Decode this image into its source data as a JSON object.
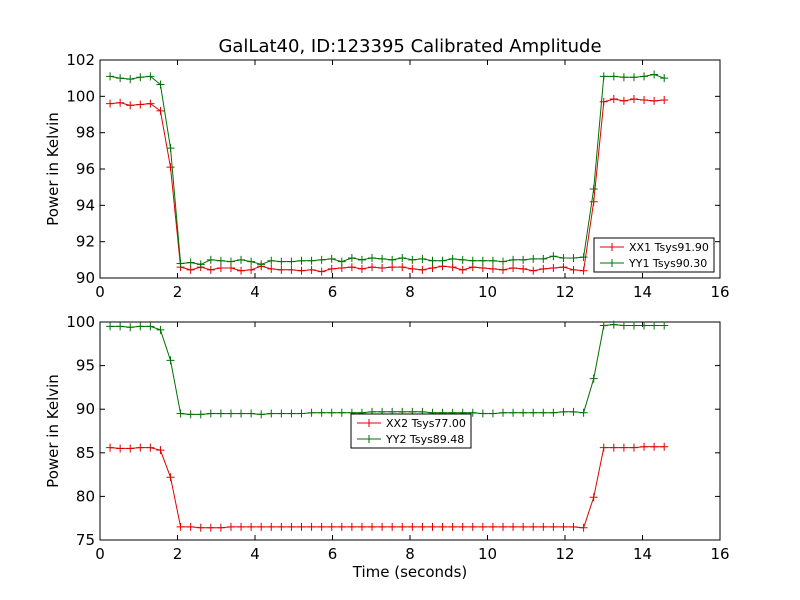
{
  "title": "GalLat40, ID:123395 Calibrated Amplitude",
  "xlabel": "Time (seconds)",
  "ylabel": "Power in Kelvin",
  "colors": {
    "xx": "#e00000",
    "yy": "#007000"
  },
  "chart_data": [
    {
      "type": "line",
      "title": "GalLat40, ID:123395 Calibrated Amplitude",
      "xlabel": "",
      "ylabel": "Power in Kelvin",
      "xlim": [
        0,
        16
      ],
      "ylim": [
        90,
        102
      ],
      "xticks": [
        0,
        2,
        4,
        6,
        8,
        10,
        12,
        14,
        16
      ],
      "yticks": [
        90,
        92,
        94,
        96,
        98,
        100,
        102
      ],
      "grid": false,
      "legend_position": "bottom-right",
      "x": [
        0.26,
        0.52,
        0.78,
        1.04,
        1.3,
        1.56,
        1.82,
        2.08,
        2.34,
        2.6,
        2.86,
        3.12,
        3.38,
        3.64,
        3.9,
        4.16,
        4.42,
        4.68,
        4.94,
        5.2,
        5.46,
        5.72,
        5.98,
        6.24,
        6.5,
        6.76,
        7.02,
        7.28,
        7.54,
        7.8,
        8.06,
        8.32,
        8.58,
        8.84,
        9.1,
        9.36,
        9.62,
        9.88,
        10.14,
        10.4,
        10.66,
        10.92,
        11.18,
        11.44,
        11.7,
        11.96,
        12.22,
        12.48,
        12.74,
        13.0,
        13.26,
        13.52,
        13.78,
        14.04,
        14.3,
        14.56
      ],
      "series": [
        {
          "name": "XX1 Tsys91.90",
          "color": "#e00000",
          "values": [
            99.6,
            99.65,
            99.5,
            99.55,
            99.6,
            99.2,
            96.1,
            90.6,
            90.45,
            90.6,
            90.45,
            90.55,
            90.55,
            90.4,
            90.45,
            90.65,
            90.5,
            90.45,
            90.45,
            90.4,
            90.45,
            90.35,
            90.5,
            90.55,
            90.6,
            90.5,
            90.6,
            90.55,
            90.6,
            90.6,
            90.5,
            90.45,
            90.55,
            90.65,
            90.6,
            90.45,
            90.6,
            90.55,
            90.5,
            90.45,
            90.55,
            90.5,
            90.4,
            90.5,
            90.55,
            90.6,
            90.45,
            90.4,
            94.2,
            99.7,
            99.85,
            99.75,
            99.85,
            99.8,
            99.75,
            99.8
          ]
        },
        {
          "name": "YY1 Tsys90.30",
          "color": "#007000",
          "values": [
            101.1,
            101.0,
            100.95,
            101.05,
            101.1,
            100.65,
            97.15,
            90.8,
            90.85,
            90.75,
            91.0,
            90.95,
            90.9,
            91.0,
            90.9,
            90.75,
            90.95,
            90.9,
            90.9,
            90.95,
            90.95,
            91.0,
            91.05,
            90.9,
            91.1,
            91.0,
            91.1,
            91.05,
            91.0,
            91.1,
            91.0,
            91.05,
            90.95,
            90.95,
            91.05,
            91.0,
            90.95,
            90.95,
            90.95,
            90.9,
            91.0,
            91.0,
            91.05,
            91.05,
            91.2,
            91.1,
            91.1,
            91.15,
            94.9,
            101.1,
            101.1,
            101.05,
            101.05,
            101.1,
            101.2,
            101.0
          ]
        }
      ]
    },
    {
      "type": "line",
      "title": "",
      "xlabel": "Time (seconds)",
      "ylabel": "Power in Kelvin",
      "xlim": [
        0,
        16
      ],
      "ylim": [
        75,
        100
      ],
      "xticks": [
        0,
        2,
        4,
        6,
        8,
        10,
        12,
        14,
        16
      ],
      "yticks": [
        75,
        80,
        85,
        90,
        95,
        100
      ],
      "grid": false,
      "legend_position": "center",
      "x": [
        0.26,
        0.52,
        0.78,
        1.04,
        1.3,
        1.56,
        1.82,
        2.08,
        2.34,
        2.6,
        2.86,
        3.12,
        3.38,
        3.64,
        3.9,
        4.16,
        4.42,
        4.68,
        4.94,
        5.2,
        5.46,
        5.72,
        5.98,
        6.24,
        6.5,
        6.76,
        7.02,
        7.28,
        7.54,
        7.8,
        8.06,
        8.32,
        8.58,
        8.84,
        9.1,
        9.36,
        9.62,
        9.88,
        10.14,
        10.4,
        10.66,
        10.92,
        11.18,
        11.44,
        11.7,
        11.96,
        12.22,
        12.48,
        12.74,
        13.0,
        13.26,
        13.52,
        13.78,
        14.04,
        14.3,
        14.56
      ],
      "series": [
        {
          "name": "XX2 Tsys77.00",
          "color": "#e00000",
          "values": [
            85.6,
            85.5,
            85.5,
            85.6,
            85.6,
            85.3,
            82.2,
            76.5,
            76.5,
            76.4,
            76.4,
            76.4,
            76.5,
            76.5,
            76.5,
            76.5,
            76.5,
            76.5,
            76.5,
            76.5,
            76.5,
            76.5,
            76.5,
            76.5,
            76.5,
            76.5,
            76.5,
            76.5,
            76.5,
            76.5,
            76.5,
            76.5,
            76.5,
            76.5,
            76.5,
            76.5,
            76.5,
            76.5,
            76.5,
            76.5,
            76.5,
            76.5,
            76.5,
            76.5,
            76.5,
            76.5,
            76.5,
            76.4,
            79.9,
            85.6,
            85.6,
            85.6,
            85.6,
            85.7,
            85.7,
            85.7
          ]
        },
        {
          "name": "YY2 Tsys89.48",
          "color": "#007000",
          "values": [
            99.5,
            99.5,
            99.4,
            99.5,
            99.5,
            99.1,
            95.6,
            89.5,
            89.4,
            89.4,
            89.5,
            89.5,
            89.5,
            89.5,
            89.5,
            89.4,
            89.5,
            89.5,
            89.5,
            89.5,
            89.6,
            89.6,
            89.6,
            89.6,
            89.6,
            89.6,
            89.7,
            89.7,
            89.7,
            89.7,
            89.7,
            89.7,
            89.6,
            89.6,
            89.6,
            89.6,
            89.6,
            89.5,
            89.5,
            89.6,
            89.6,
            89.6,
            89.6,
            89.6,
            89.6,
            89.7,
            89.7,
            89.6,
            93.5,
            99.6,
            99.7,
            99.6,
            99.6,
            99.6,
            99.6,
            99.6
          ]
        }
      ]
    }
  ]
}
